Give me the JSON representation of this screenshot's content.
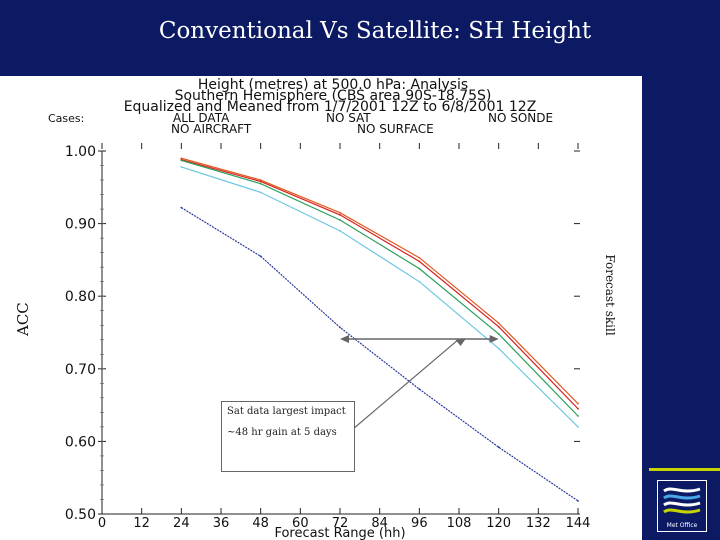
{
  "slide": {
    "title": "Conventional Vs Satellite: SH Height",
    "ylabel": "ACC",
    "right_label": "Forecast skill",
    "annotation": {
      "line1": "Sat data largest impact",
      "line2": "~48 hr gain at 5 days"
    },
    "logo_text": "Met Office"
  },
  "chart_data": {
    "type": "line",
    "header": [
      "Height (metres) at 500.0 hPa: Analysis",
      "Southern Hemisphere (CBS area 90S-18.75S)",
      "Equalized and Meaned from 1/7/2001 12Z to 6/8/2001 12Z"
    ],
    "cases_label": "Cases:",
    "case_labels": [
      "ALL DATA",
      "NO SAT",
      "NO SONDE",
      "NO AIRCRAFT",
      "NO SURFACE"
    ],
    "xlabel": "Forecast Range (hh)",
    "ylabel": "",
    "xlim": [
      0,
      144
    ],
    "ylim": [
      0.5,
      1.0
    ],
    "x_ticks": [
      0,
      12,
      24,
      36,
      48,
      60,
      72,
      84,
      96,
      108,
      120,
      132,
      144
    ],
    "y_ticks": [
      "0.50",
      "0.60",
      "0.70",
      "0.80",
      "0.90",
      "1.00"
    ],
    "y_tick_values": [
      0.5,
      0.6,
      0.7,
      0.8,
      0.9,
      1.0
    ],
    "x": [
      24,
      48,
      72,
      96,
      120,
      144
    ],
    "series": [
      {
        "color": "#e05a1e",
        "values": [
          0.99,
          0.96,
          0.915,
          0.853,
          0.763,
          0.652
        ]
      },
      {
        "color": "#d62020",
        "values": [
          0.988,
          0.958,
          0.912,
          0.848,
          0.758,
          0.645
        ]
      },
      {
        "color": "#2aa05a",
        "values": [
          0.987,
          0.955,
          0.905,
          0.838,
          0.748,
          0.635
        ]
      },
      {
        "color": "#6cc7e3",
        "values": [
          0.978,
          0.943,
          0.89,
          0.82,
          0.728,
          0.62
        ]
      },
      {
        "color": "#2a3a9a",
        "values": [
          0.922,
          0.855,
          0.757,
          0.672,
          0.592,
          0.518
        ]
      }
    ],
    "arrow": {
      "x_start": 120,
      "x_end": 72,
      "y": 0.741
    },
    "grid": false
  }
}
